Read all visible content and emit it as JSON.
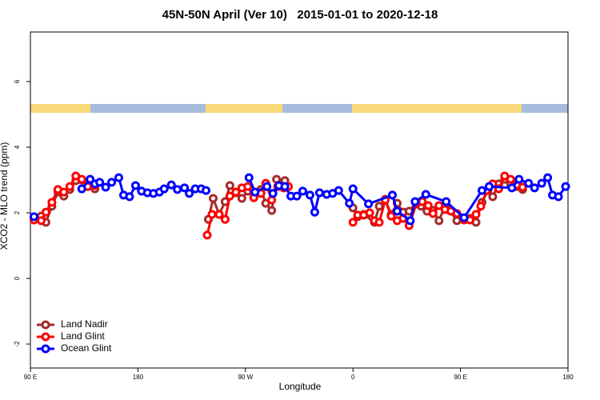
{
  "chart_data": {
    "type": "line",
    "title": "45N-50N April (Ver 10)   2015-01-01 to 2020-12-18",
    "x_label": "Longitude",
    "y_label": "XCO2 - MLO trend (ppm)",
    "xlim": [
      90,
      540
    ],
    "xticks": [
      {
        "value": 90,
        "label": "90 E"
      },
      {
        "value": 180,
        "label": "180"
      },
      {
        "value": 270,
        "label": "90 W"
      },
      {
        "value": 360,
        "label": "0"
      },
      {
        "value": 450,
        "label": "90 E"
      },
      {
        "value": 540,
        "label": "180"
      }
    ],
    "ylim": [
      -2.73,
      7.51
    ],
    "yticks": [
      -2,
      0,
      2,
      4,
      6
    ],
    "legend": "bottom-left",
    "series": [
      {
        "name": "Land Nadir",
        "color": "#a52a2a",
        "x": [
          93,
          99,
          103,
          108,
          113,
          118,
          123,
          128,
          133,
          138,
          144,
          null,
          239,
          243,
          248,
          253,
          257,
          262,
          267,
          272,
          277,
          283,
          287,
          292,
          296,
          303,
          null,
          360,
          364,
          369,
          378,
          382,
          387,
          392,
          397,
          402,
          407,
          413,
          417,
          422,
          427,
          432,
          437,
          441,
          447,
          453,
          458,
          463,
          468,
          473,
          477,
          482,
          487,
          492,
          497,
          502
        ],
        "values": [
          1.85,
          1.9,
          1.71,
          2.2,
          2.63,
          2.51,
          2.71,
          2.98,
          3.0,
          2.83,
          2.73,
          null,
          1.8,
          2.44,
          1.95,
          2.34,
          2.83,
          2.61,
          2.44,
          2.66,
          2.46,
          2.71,
          2.29,
          2.07,
          3.02,
          2.98,
          null,
          2.15,
          1.88,
          1.95,
          1.71,
          2.2,
          2.41,
          1.95,
          2.29,
          2.02,
          2.05,
          2.32,
          2.2,
          2.05,
          2.07,
          1.76,
          2.2,
          2.07,
          1.76,
          1.83,
          1.83,
          1.71,
          2.32,
          2.68,
          2.49,
          2.88,
          3.02,
          2.88,
          2.8,
          2.71
        ]
      },
      {
        "name": "Land Glint",
        "color": "#ff0000",
        "x": [
          93,
          99,
          103,
          108,
          113,
          118,
          123,
          128,
          133,
          138,
          144,
          null,
          238,
          242,
          248,
          253,
          257,
          262,
          267,
          272,
          277,
          283,
          287,
          292,
          297,
          302,
          306,
          null,
          360,
          364,
          369,
          374,
          378,
          382,
          387,
          392,
          397,
          402,
          407,
          413,
          418,
          423,
          427,
          432,
          437,
          442,
          447,
          453,
          458,
          463,
          467,
          472,
          477,
          482,
          487,
          492,
          497,
          502
        ],
        "values": [
          1.78,
          1.76,
          2.02,
          2.32,
          2.71,
          2.63,
          2.8,
          3.12,
          3.02,
          2.8,
          2.83,
          null,
          1.32,
          1.95,
          1.95,
          1.8,
          2.51,
          2.63,
          2.76,
          2.8,
          2.46,
          2.59,
          2.9,
          2.39,
          2.8,
          2.76,
          2.8,
          null,
          1.71,
          1.93,
          1.93,
          2.0,
          1.76,
          1.71,
          2.39,
          1.9,
          1.76,
          1.83,
          1.61,
          2.27,
          2.34,
          2.22,
          1.98,
          2.22,
          2.1,
          2.05,
          1.98,
          1.78,
          1.78,
          1.95,
          2.2,
          2.68,
          2.88,
          2.73,
          3.12,
          3.02,
          2.85,
          2.78
        ]
      },
      {
        "name": "Ocean Glint",
        "color": "#0000ff",
        "x": [
          93,
          null,
          133,
          140,
          144,
          148,
          153,
          158,
          164,
          168,
          173,
          178,
          183,
          188,
          193,
          198,
          202,
          208,
          213,
          219,
          223,
          228,
          233,
          237,
          null,
          273,
          278,
          288,
          293,
          298,
          303,
          308,
          313,
          318,
          324,
          328,
          332,
          338,
          343,
          348,
          357,
          360,
          373,
          393,
          397,
          408,
          412,
          421,
          438,
          453,
          468,
          474,
          493,
          499,
          507,
          512,
          518,
          523,
          527,
          532,
          538
        ],
        "values": [
          1.88,
          null,
          2.73,
          3.02,
          2.88,
          2.93,
          2.78,
          2.93,
          3.07,
          2.54,
          2.49,
          2.83,
          2.66,
          2.61,
          2.59,
          2.63,
          2.73,
          2.85,
          2.71,
          2.76,
          2.59,
          2.73,
          2.73,
          2.68,
          null,
          3.07,
          2.63,
          2.8,
          2.59,
          2.83,
          2.8,
          2.51,
          2.51,
          2.66,
          2.54,
          2.02,
          2.61,
          2.56,
          2.59,
          2.68,
          2.29,
          2.73,
          2.27,
          2.54,
          2.05,
          1.76,
          2.34,
          2.56,
          2.34,
          1.85,
          2.68,
          2.8,
          2.76,
          3.02,
          2.9,
          2.76,
          2.9,
          3.07,
          2.54,
          2.49,
          2.8
        ]
      }
    ]
  }
}
